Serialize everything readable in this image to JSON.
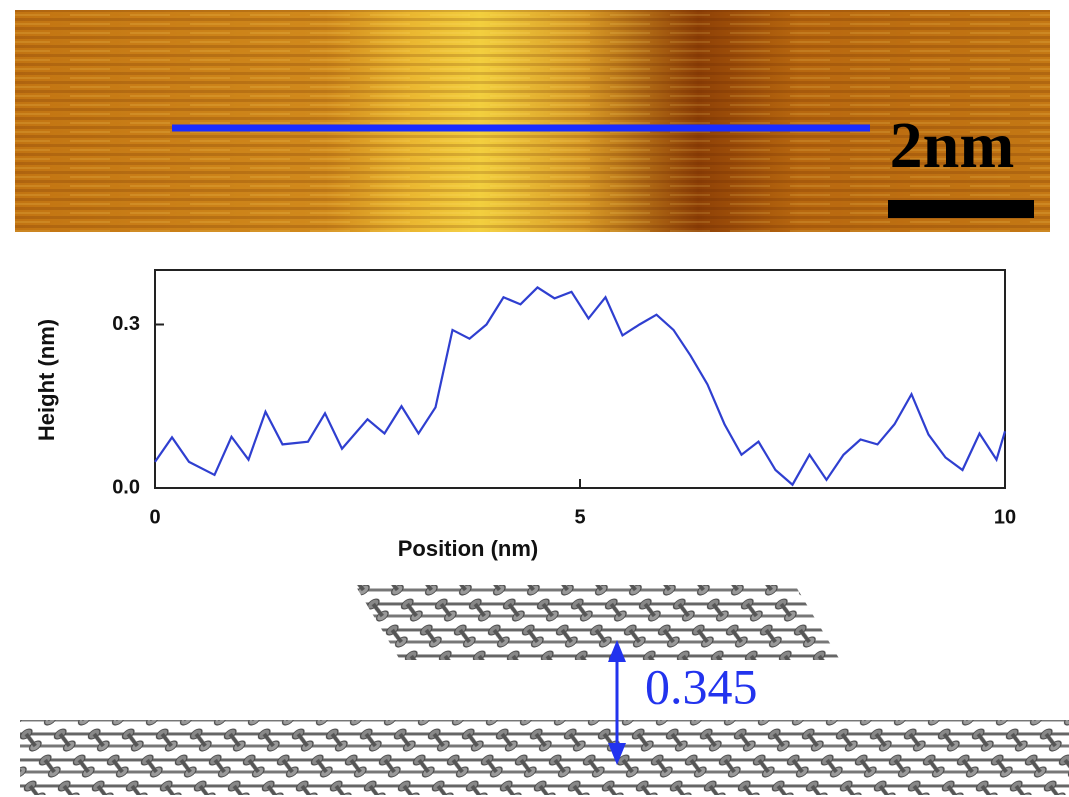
{
  "scale_bar_label": "2nm",
  "chart_data": {
    "type": "line",
    "x_label": "Position (nm)",
    "y_label": "Height (nm)",
    "x": [
      0,
      0.2,
      0.4,
      0.7,
      0.9,
      1.1,
      1.3,
      1.5,
      1.8,
      2.0,
      2.2,
      2.5,
      2.7,
      2.9,
      3.1,
      3.3,
      3.5,
      3.7,
      3.9,
      4.1,
      4.3,
      4.5,
      4.7,
      4.9,
      5.1,
      5.3,
      5.5,
      5.7,
      5.9,
      6.1,
      6.3,
      6.5,
      6.7,
      6.9,
      7.1,
      7.3,
      7.5,
      7.7,
      7.9,
      8.1,
      8.3,
      8.5,
      8.7,
      8.9,
      9.1,
      9.3,
      9.5,
      9.7,
      9.9,
      10
    ],
    "series": [
      {
        "color": "#2f3fd0",
        "values": [
          0.048,
          0.093,
          0.048,
          0.024,
          0.094,
          0.052,
          0.14,
          0.08,
          0.085,
          0.137,
          0.072,
          0.126,
          0.1,
          0.15,
          0.1,
          0.148,
          0.29,
          0.274,
          0.3,
          0.35,
          0.337,
          0.368,
          0.348,
          0.36,
          0.311,
          0.35,
          0.28,
          0.3,
          0.318,
          0.29,
          0.243,
          0.19,
          0.117,
          0.061,
          0.085,
          0.033,
          0.006,
          0.061,
          0.015,
          0.061,
          0.089,
          0.08,
          0.117,
          0.172,
          0.098,
          0.056,
          0.033,
          0.1,
          0.052,
          0.104
        ]
      }
    ],
    "xlim": [
      0,
      10
    ],
    "xticks": [
      0,
      5,
      10
    ],
    "ylim": [
      0,
      0.4
    ],
    "yticks": [
      {
        "value": 0,
        "label": "0.0"
      },
      0.3
    ]
  },
  "spacing_label": "0.345"
}
